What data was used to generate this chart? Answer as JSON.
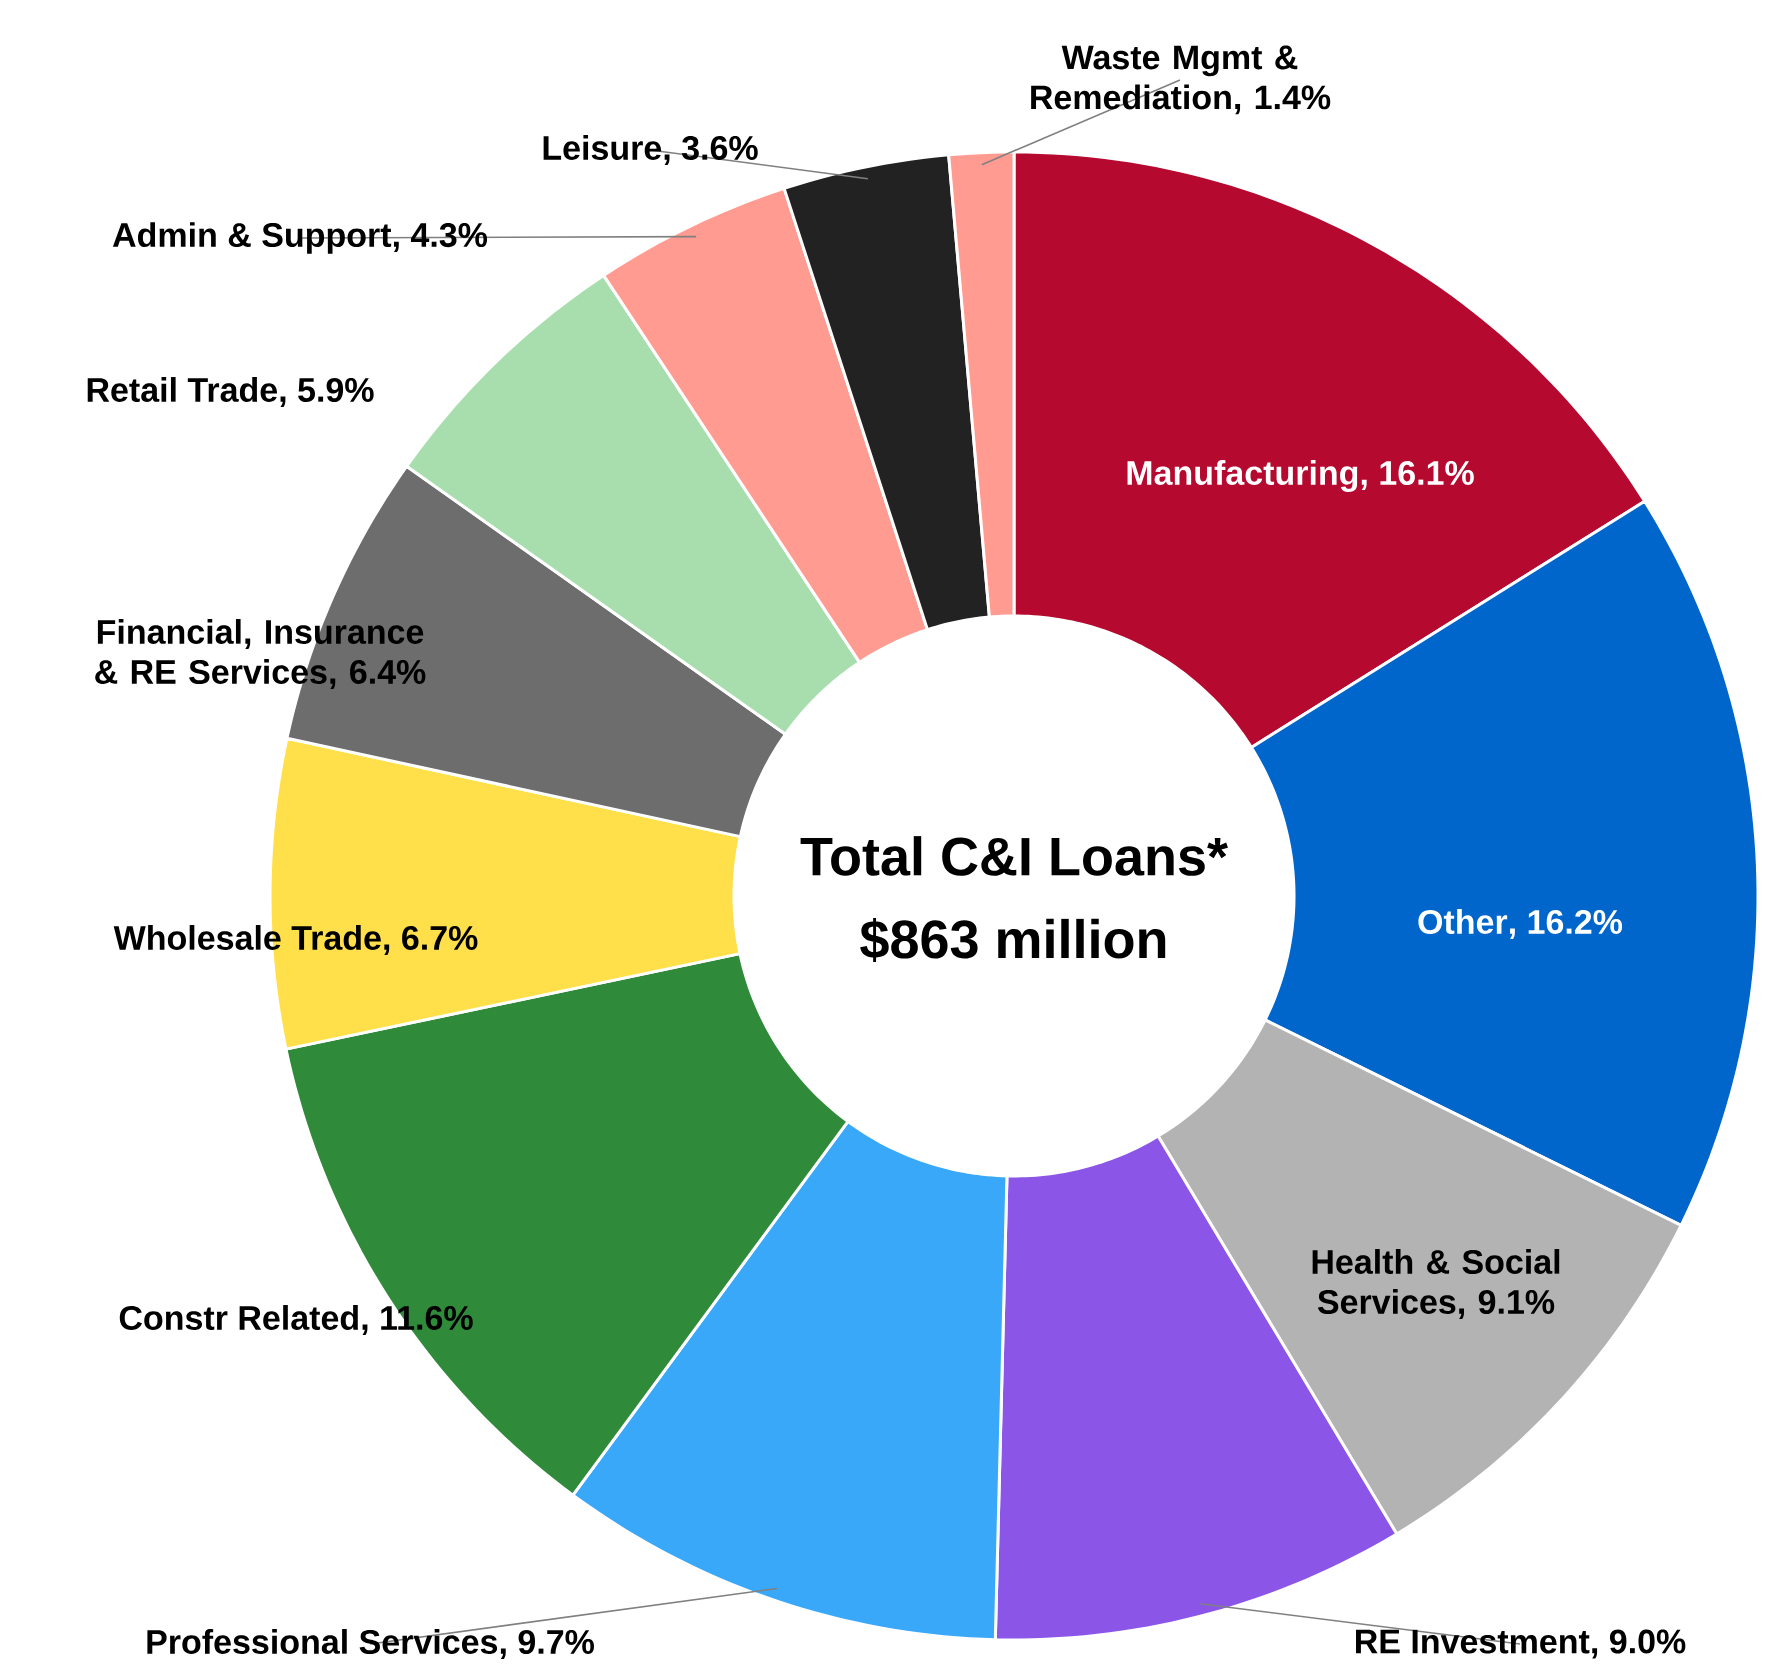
{
  "chart_data": {
    "type": "donut",
    "title": "Total C&I Loans*",
    "subtitle": "$863 million",
    "categories": [
      "Manufacturing",
      "Other",
      "Health & Social Services",
      "RE Investment",
      "Professional Services",
      "Constr Related",
      "Wholesale Trade",
      "Financial, Insurance & RE Services",
      "Retail Trade",
      "Admin & Support",
      "Leisure",
      "Waste Mgmt & Remediation"
    ],
    "values": [
      16.1,
      16.2,
      9.1,
      9.0,
      9.7,
      11.6,
      6.7,
      6.4,
      5.9,
      4.3,
      3.6,
      1.4
    ],
    "value_labels": [
      ", 16.1%",
      ", 16.2%",
      ", 9.1%",
      ", 9.0%",
      ", 9.7%",
      ", 11.6%",
      ", 6.7%",
      ", 6.4%",
      ", 5.9%",
      ", 4.3%",
      ", 3.6%",
      ", 1.4%"
    ],
    "colors": [
      "#b5092f",
      "#0066cc",
      "#b3b3b3",
      "#8b55e8",
      "#3aa8f8",
      "#2f8a3a",
      "#ffe04a",
      "#6d6d6d",
      "#a8deae",
      "#ff9b90",
      "#222222",
      "#ff9b90"
    ]
  }
}
